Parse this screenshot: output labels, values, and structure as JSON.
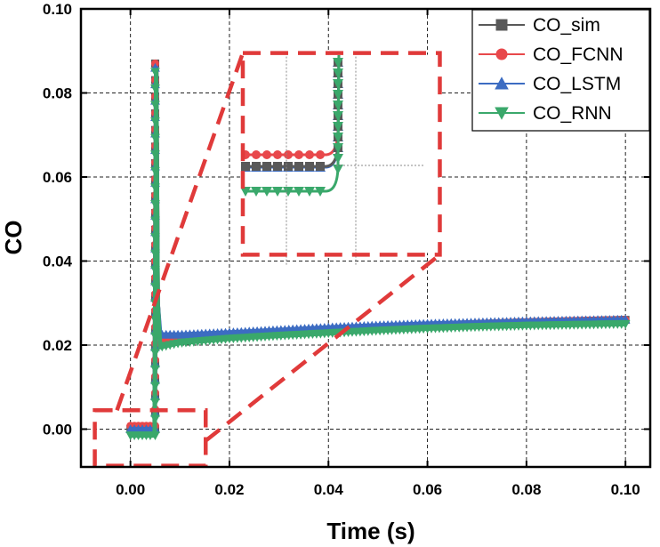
{
  "chart_data": {
    "type": "line",
    "title": "",
    "xlabel": "Time (s)",
    "ylabel": "CO",
    "xlim": [
      -0.01,
      0.105
    ],
    "ylim": [
      -0.009,
      0.1
    ],
    "xticks": [
      0.0,
      0.02,
      0.04,
      0.06,
      0.08,
      0.1
    ],
    "xtick_labels": [
      "0.00",
      "0.02",
      "0.04",
      "0.06",
      "0.08",
      "0.10"
    ],
    "yticks": [
      0.0,
      0.02,
      0.04,
      0.06,
      0.08,
      0.1
    ],
    "ytick_labels": [
      "0.00",
      "0.02",
      "0.04",
      "0.06",
      "0.08",
      "0.10"
    ],
    "grid": true,
    "legend_position": "top-right",
    "series": [
      {
        "name": "CO_sim",
        "color": "#595959",
        "marker": "square",
        "x": [
          0.0,
          0.0049,
          0.0052,
          0.0055,
          0.006,
          0.01,
          0.02,
          0.03,
          0.04,
          0.05,
          0.06,
          0.07,
          0.08,
          0.09,
          0.1
        ],
        "y": [
          0.0,
          0.0,
          0.087,
          0.03,
          0.0205,
          0.021,
          0.022,
          0.0228,
          0.0235,
          0.0241,
          0.0246,
          0.025,
          0.0254,
          0.0257,
          0.026
        ]
      },
      {
        "name": "CO_FCNN",
        "color": "#e8484b",
        "marker": "circle",
        "x": [
          0.0,
          0.0049,
          0.0052,
          0.0055,
          0.006,
          0.01,
          0.02,
          0.03,
          0.04,
          0.05,
          0.06,
          0.07,
          0.08,
          0.09,
          0.1
        ],
        "y": [
          0.0008,
          0.0008,
          0.087,
          0.03,
          0.021,
          0.0213,
          0.0222,
          0.023,
          0.0236,
          0.0242,
          0.0247,
          0.0251,
          0.0255,
          0.0258,
          0.026
        ]
      },
      {
        "name": "CO_LSTM",
        "color": "#3c6cc2",
        "marker": "triangle-up",
        "x": [
          0.0,
          0.0049,
          0.0052,
          0.0055,
          0.006,
          0.01,
          0.02,
          0.03,
          0.04,
          0.05,
          0.06,
          0.07,
          0.08,
          0.09,
          0.1
        ],
        "y": [
          0.0,
          0.0,
          0.086,
          0.03,
          0.0225,
          0.0225,
          0.023,
          0.0236,
          0.0242,
          0.0247,
          0.0251,
          0.0254,
          0.0257,
          0.0259,
          0.0261
        ]
      },
      {
        "name": "CO_RNN",
        "color": "#3aa86b",
        "marker": "triangle-down",
        "x": [
          0.0,
          0.0049,
          0.0052,
          0.0055,
          0.006,
          0.01,
          0.02,
          0.03,
          0.04,
          0.05,
          0.06,
          0.07,
          0.08,
          0.09,
          0.1
        ],
        "y": [
          -0.0015,
          -0.0015,
          0.085,
          0.03,
          0.0195,
          0.0205,
          0.0215,
          0.0222,
          0.0228,
          0.0234,
          0.0239,
          0.0243,
          0.0246,
          0.0248,
          0.025
        ]
      }
    ],
    "annotations": [
      {
        "type": "dashed-box",
        "label": "zoom-source",
        "x_range": [
          -0.0072,
          0.0152
        ],
        "y_range": [
          -0.0087,
          0.0045
        ],
        "color": "#e03a3a"
      },
      {
        "type": "dashed-box",
        "label": "zoom-inset",
        "x_range": [
          0.0227,
          0.0625
        ],
        "y_range": [
          0.0415,
          0.0895
        ],
        "color": "#e03a3a"
      }
    ]
  }
}
